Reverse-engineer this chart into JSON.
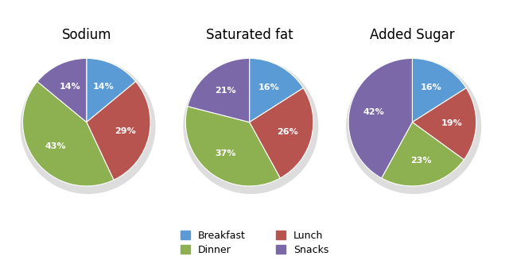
{
  "charts": [
    {
      "title": "Sodium",
      "values": [
        14,
        29,
        43,
        14
      ],
      "labels": [
        "Breakfast",
        "Lunch",
        "Dinner",
        "Snacks"
      ],
      "startangle": 90
    },
    {
      "title": "Saturated fat",
      "values": [
        16,
        26,
        37,
        21
      ],
      "labels": [
        "Breakfast",
        "Lunch",
        "Dinner",
        "Snacks"
      ],
      "startangle": 90
    },
    {
      "title": "Added Sugar",
      "values": [
        16,
        19,
        23,
        42
      ],
      "labels": [
        "Breakfast",
        "Lunch",
        "Dinner",
        "Snacks"
      ],
      "startangle": 90
    }
  ],
  "colors": {
    "Breakfast": "#5B9BD5",
    "Lunch": "#B85450",
    "Dinner": "#8DB050",
    "Snacks": "#7B68A8"
  },
  "text_color": "#FFFFFF",
  "font_size_title": 12,
  "font_size_label": 8,
  "background_color": "#FFFFFF",
  "shadow_color": "#DDDDDD",
  "legend_col1": [
    "Breakfast",
    "Lunch"
  ],
  "legend_col2": [
    "Dinner",
    "Snacks"
  ]
}
